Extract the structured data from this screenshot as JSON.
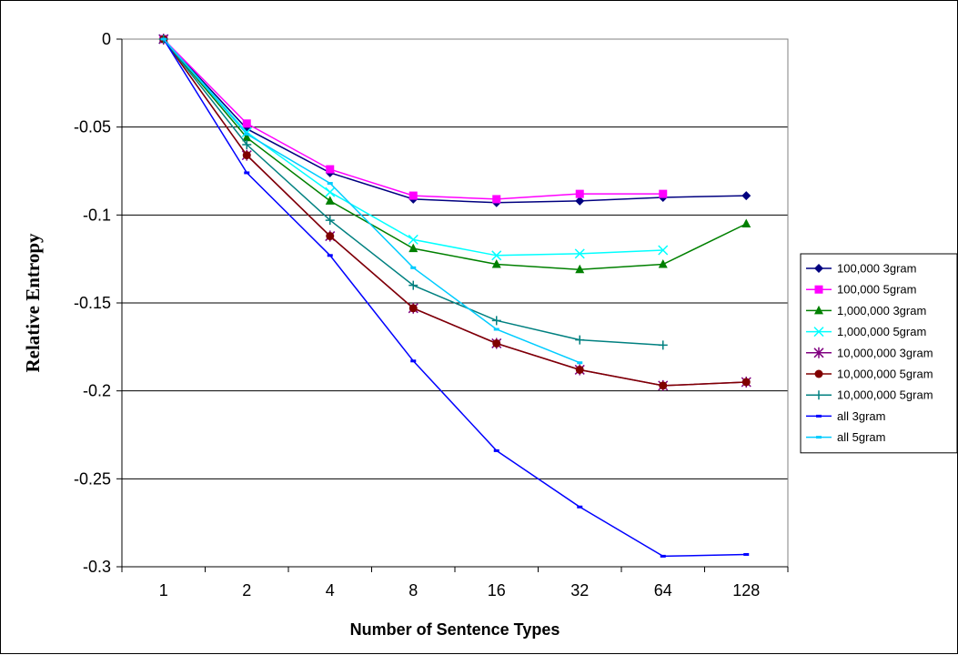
{
  "chart_data": {
    "type": "line",
    "title": "",
    "xlabel": "Number of Sentence Types",
    "ylabel": "Relative Entropy",
    "categories": [
      "1",
      "2",
      "4",
      "8",
      "16",
      "32",
      "64",
      "128"
    ],
    "ylim": [
      -0.3,
      0
    ],
    "yticks": [
      "0",
      "-0.05",
      "-0.1",
      "-0.15",
      "-0.2",
      "-0.25",
      "-0.3"
    ],
    "grid": "horizontal",
    "legend_position": "right",
    "series": [
      {
        "name": "100,000 3gram",
        "color": "#000080",
        "marker": "diamond",
        "values": [
          0,
          -0.051,
          -0.076,
          -0.091,
          -0.093,
          -0.092,
          -0.09,
          -0.089
        ]
      },
      {
        "name": "100,000 5gram",
        "color": "#ff00ff",
        "marker": "square",
        "values": [
          0,
          -0.048,
          -0.074,
          -0.089,
          -0.091,
          -0.088,
          -0.088,
          null
        ]
      },
      {
        "name": "1,000,000 3gram",
        "color": "#008000",
        "marker": "triangle",
        "values": [
          0,
          -0.056,
          -0.092,
          -0.119,
          -0.128,
          -0.131,
          -0.128,
          -0.105
        ]
      },
      {
        "name": "1,000,000 5gram",
        "color": "#00ffff",
        "marker": "x",
        "values": [
          0,
          -0.053,
          -0.087,
          -0.114,
          -0.123,
          -0.122,
          -0.12,
          null
        ]
      },
      {
        "name": "10,000,000 3gram",
        "color": "#800080",
        "marker": "star",
        "values": [
          0,
          -0.066,
          -0.112,
          -0.153,
          -0.173,
          -0.188,
          -0.197,
          -0.195
        ]
      },
      {
        "name": "10,000,000 5gram",
        "color": "#800000",
        "marker": "circle",
        "values": [
          0,
          -0.066,
          -0.112,
          -0.153,
          -0.173,
          -0.188,
          -0.197,
          -0.195
        ]
      },
      {
        "name": "10,000,000 5gram",
        "color": "#008080",
        "marker": "plus",
        "values": [
          0,
          -0.06,
          -0.103,
          -0.14,
          -0.16,
          -0.171,
          -0.174,
          null
        ]
      },
      {
        "name": "all 3gram",
        "color": "#0000ff",
        "marker": "dash",
        "values": [
          0,
          -0.076,
          -0.123,
          -0.183,
          -0.234,
          -0.266,
          -0.294,
          -0.293
        ]
      },
      {
        "name": "all 5gram",
        "color": "#00ccff",
        "marker": "dash",
        "values": [
          0,
          -0.054,
          -0.082,
          -0.13,
          -0.165,
          -0.184,
          null,
          null
        ]
      }
    ]
  }
}
